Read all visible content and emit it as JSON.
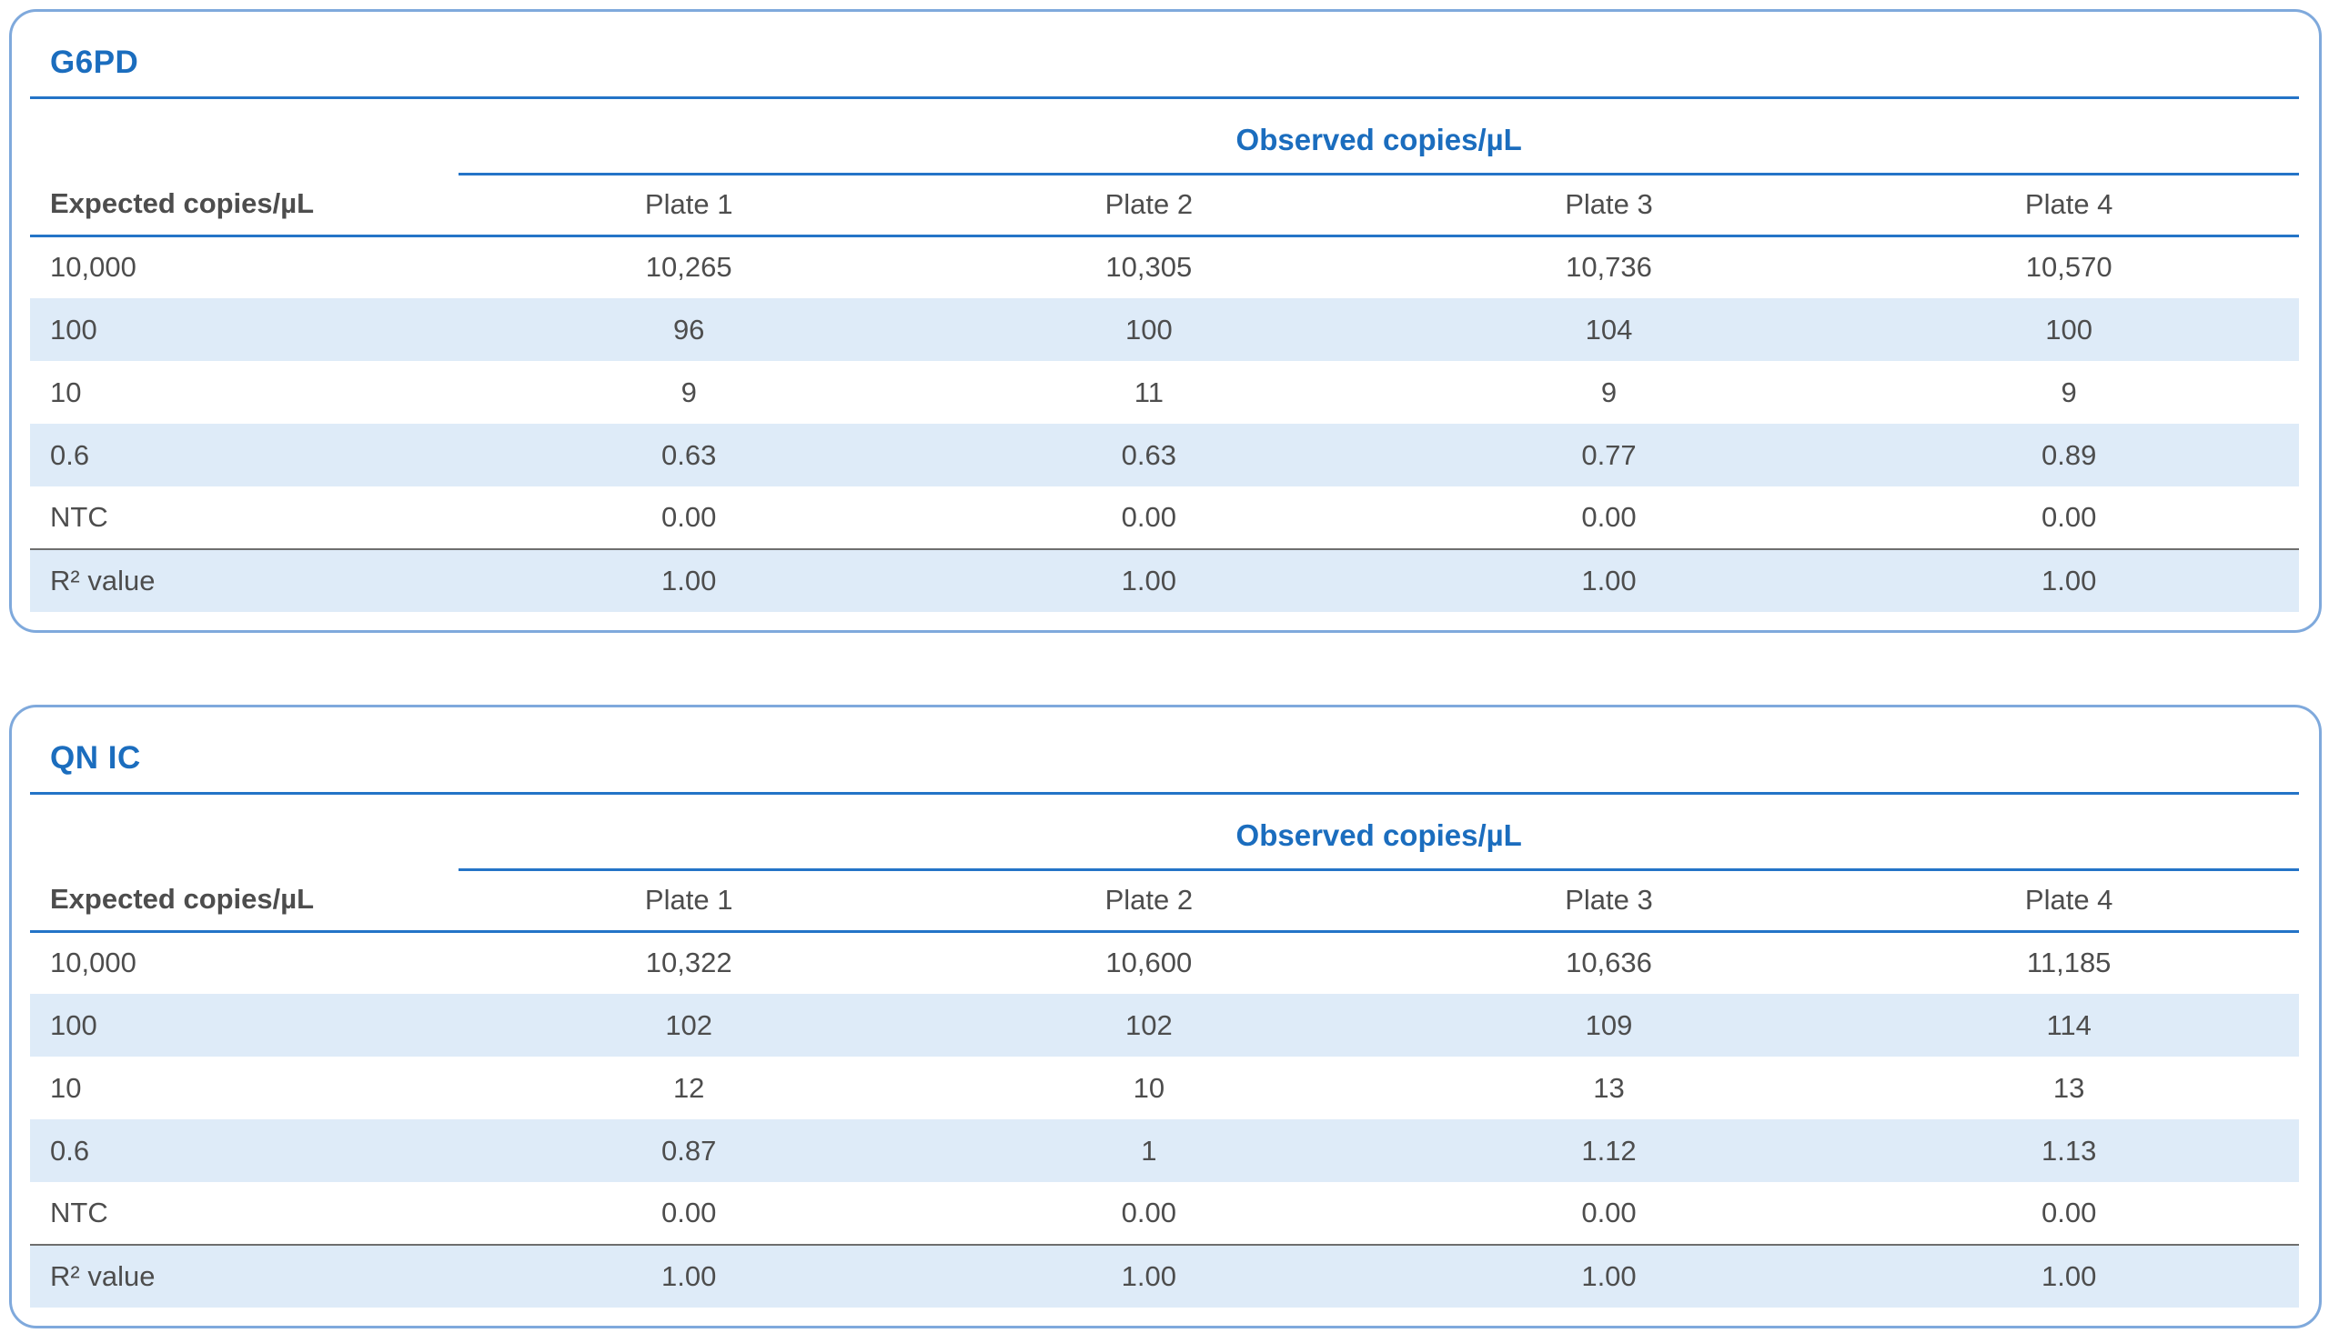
{
  "theme": {
    "accent_blue": "#1B6DBE",
    "line_blue": "#2474C7",
    "row_alt_background": "#DEEBF8",
    "card_border": "#7FA9DC",
    "body_text": "#4D4D4D",
    "header_text": "#3D3D3D",
    "summary_divider_gray": "#6E6E6E",
    "page_background": "#FFFFFF"
  },
  "tables": [
    {
      "title": "G6PD",
      "observed_header": "Observed copies/µL",
      "row_header": "Expected copies/µL",
      "plate_headers": [
        "Plate 1",
        "Plate 2",
        "Plate 3",
        "Plate 4"
      ],
      "rows": [
        {
          "expected": "10,000",
          "values": [
            "10,265",
            "10,305",
            "10,736",
            "10,570"
          ]
        },
        {
          "expected": "100",
          "values": [
            "96",
            "100",
            "104",
            "100"
          ]
        },
        {
          "expected": "10",
          "values": [
            "9",
            "11",
            "9",
            "9"
          ]
        },
        {
          "expected": "0.6",
          "values": [
            "0.63",
            "0.63",
            "0.77",
            "0.89"
          ]
        },
        {
          "expected": "NTC",
          "values": [
            "0.00",
            "0.00",
            "0.00",
            "0.00"
          ]
        },
        {
          "expected": "R² value",
          "values": [
            "1.00",
            "1.00",
            "1.00",
            "1.00"
          ]
        }
      ]
    },
    {
      "title": "QN IC",
      "observed_header": "Observed copies/µL",
      "row_header": "Expected copies/µL",
      "plate_headers": [
        "Plate 1",
        "Plate 2",
        "Plate 3",
        "Plate 4"
      ],
      "rows": [
        {
          "expected": "10,000",
          "values": [
            "10,322",
            "10,600",
            "10,636",
            "11,185"
          ]
        },
        {
          "expected": "100",
          "values": [
            "102",
            "102",
            "109",
            "114"
          ]
        },
        {
          "expected": "10",
          "values": [
            "12",
            "10",
            "13",
            "13"
          ]
        },
        {
          "expected": "0.6",
          "values": [
            "0.87",
            "1",
            "1.12",
            "1.13"
          ]
        },
        {
          "expected": "NTC",
          "values": [
            "0.00",
            "0.00",
            "0.00",
            "0.00"
          ]
        },
        {
          "expected": "R² value",
          "values": [
            "1.00",
            "1.00",
            "1.00",
            "1.00"
          ]
        }
      ]
    }
  ]
}
